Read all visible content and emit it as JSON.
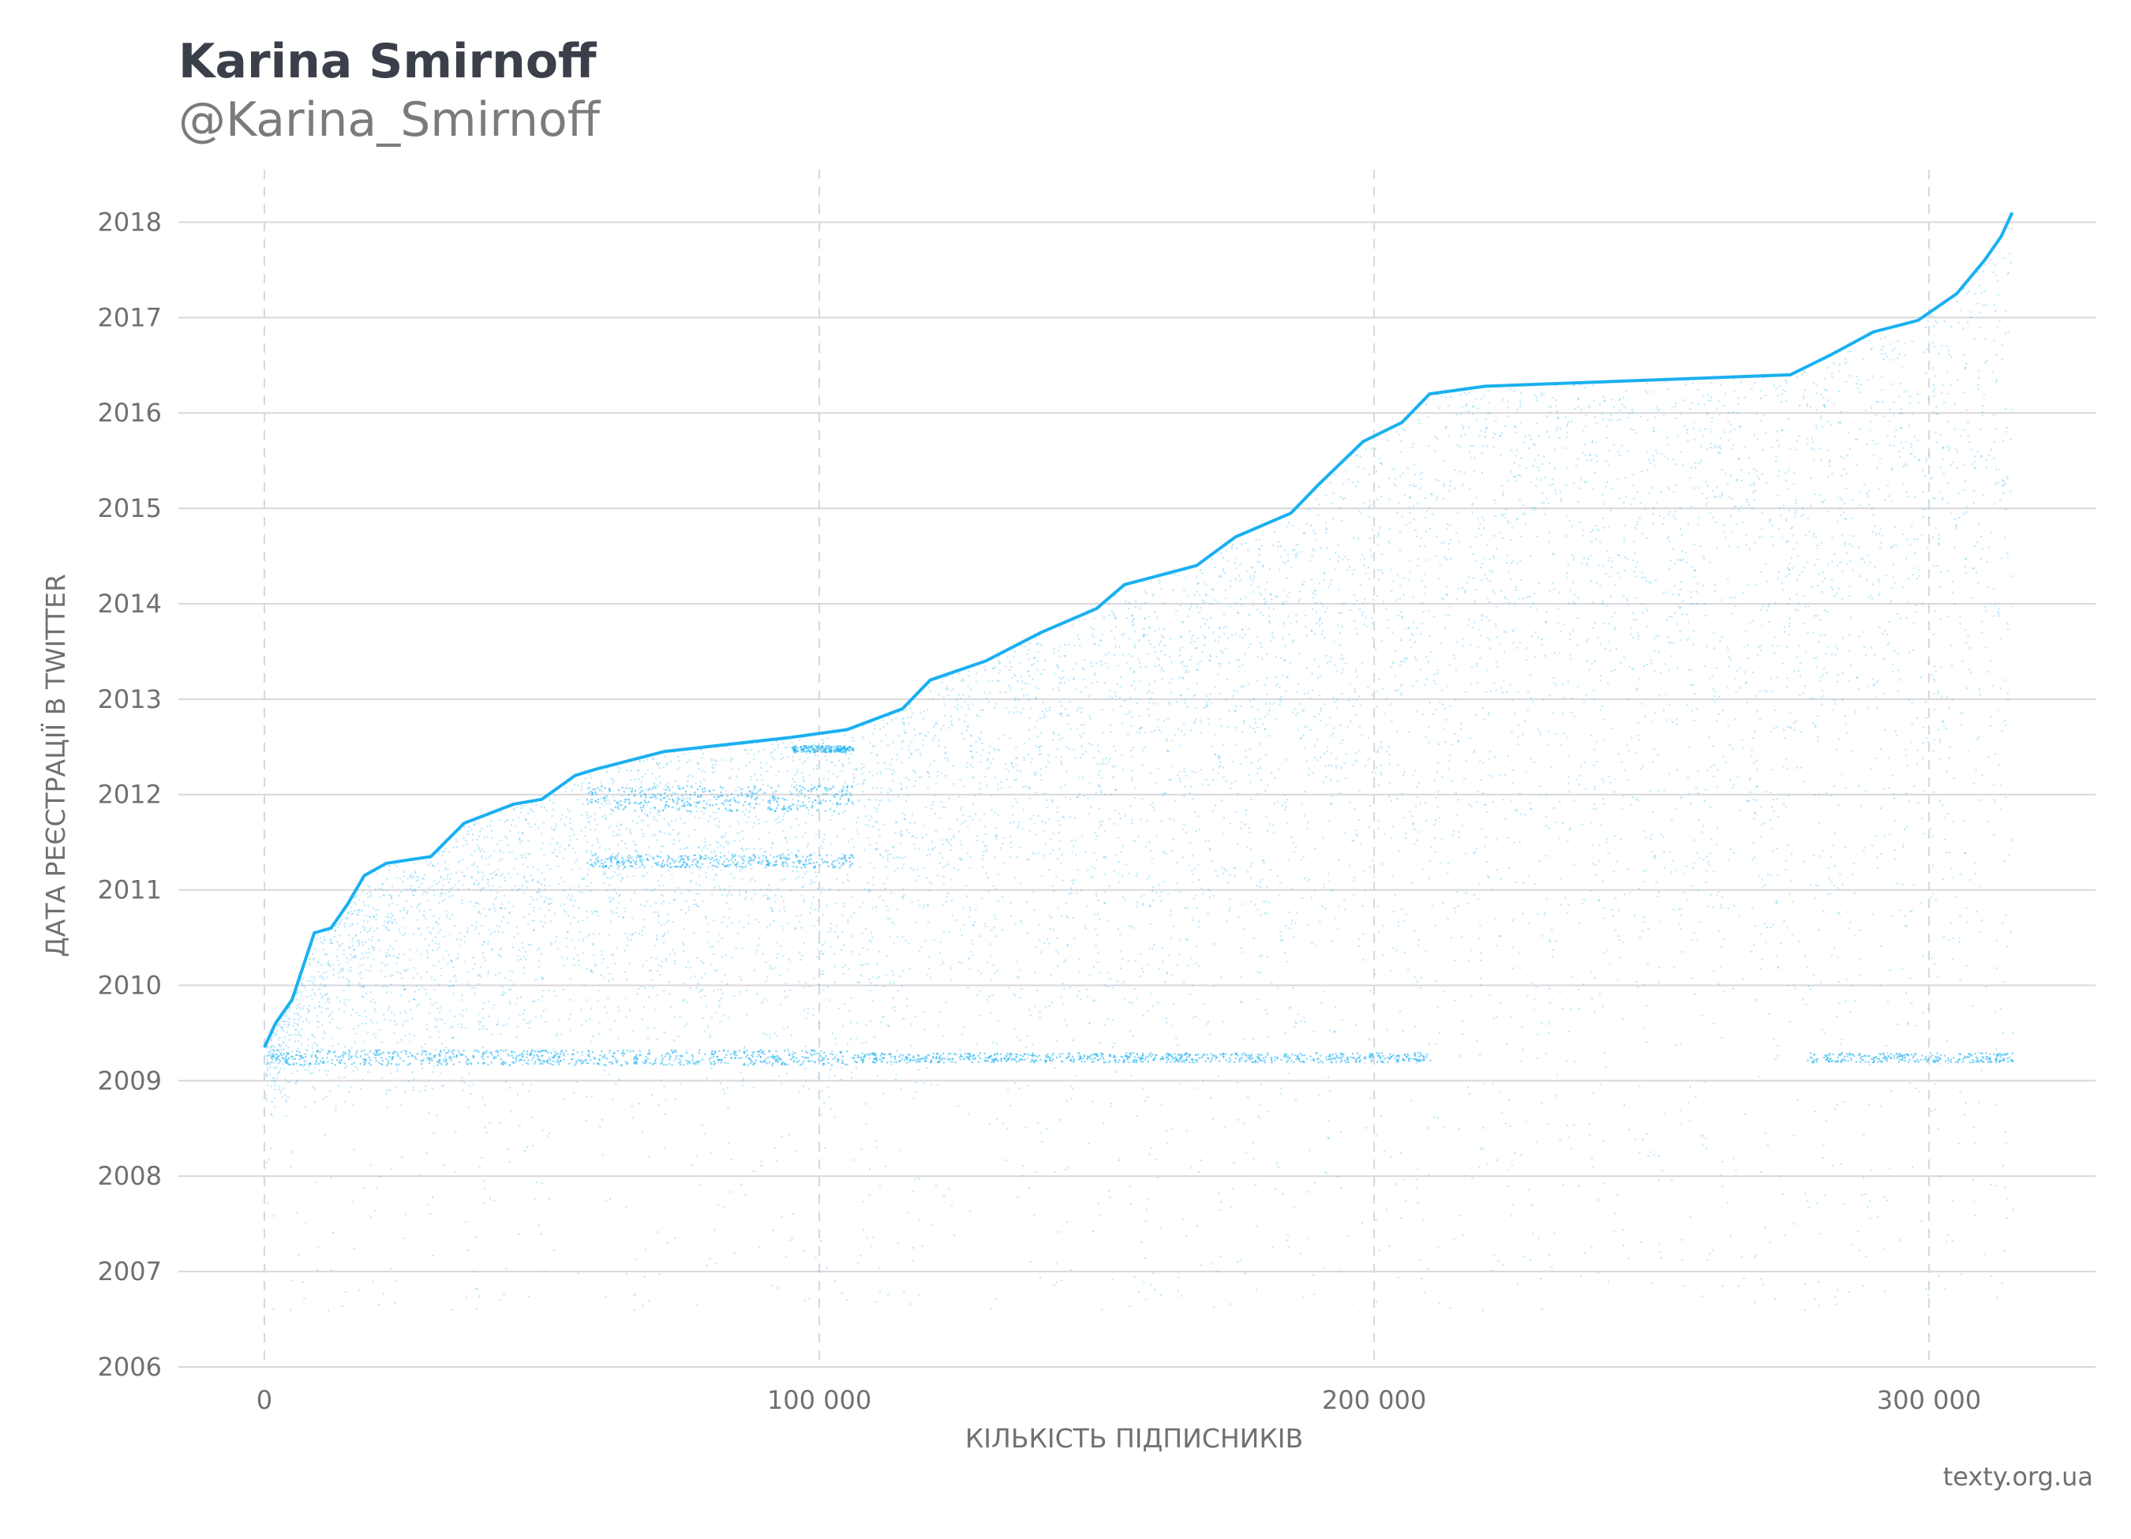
{
  "chart_data": {
    "type": "scatter",
    "title": "Karina Smirnoff",
    "subtitle": "@Karina_Smirnoff",
    "xlabel": "КІЛЬКІСТЬ ПІДПИСНИКІВ",
    "ylabel": "ДАТА РЕЄСТРАЦІЇ В TWITTER",
    "xlim": [
      -15500,
      330000
    ],
    "ylim": [
      2006,
      2018.55
    ],
    "x_ticks": [
      0,
      100000,
      200000,
      300000
    ],
    "x_tick_labels": [
      "0",
      "100 000",
      "200 000",
      "300 000"
    ],
    "y_ticks": [
      2006,
      2007,
      2008,
      2009,
      2010,
      2011,
      2012,
      2013,
      2014,
      2015,
      2016,
      2017,
      2018
    ],
    "y_tick_labels": [
      "2006",
      "2007",
      "2008",
      "2009",
      "2010",
      "2011",
      "2012",
      "2013",
      "2014",
      "2015",
      "2016",
      "2017",
      "2018"
    ],
    "grid": {
      "horizontal": "solid",
      "vertical": "dashed"
    },
    "point_color": "#1ab0f0",
    "total_followers": 315000,
    "frontier": [
      [
        0,
        2009.35
      ],
      [
        2000,
        2009.6
      ],
      [
        5000,
        2009.85
      ],
      [
        9000,
        2010.55
      ],
      [
        12000,
        2010.6
      ],
      [
        15000,
        2010.85
      ],
      [
        18000,
        2011.15
      ],
      [
        22000,
        2011.28
      ],
      [
        30000,
        2011.35
      ],
      [
        36000,
        2011.7
      ],
      [
        45000,
        2011.9
      ],
      [
        50000,
        2011.95
      ],
      [
        56000,
        2012.2
      ],
      [
        60000,
        2012.27
      ],
      [
        72000,
        2012.45
      ],
      [
        95000,
        2012.6
      ],
      [
        105000,
        2012.68
      ],
      [
        115000,
        2012.9
      ],
      [
        120000,
        2013.2
      ],
      [
        130000,
        2013.4
      ],
      [
        140000,
        2013.7
      ],
      [
        150000,
        2013.95
      ],
      [
        155000,
        2014.2
      ],
      [
        168000,
        2014.4
      ],
      [
        175000,
        2014.7
      ],
      [
        185000,
        2014.95
      ],
      [
        190000,
        2015.25
      ],
      [
        198000,
        2015.7
      ],
      [
        205000,
        2015.9
      ],
      [
        210000,
        2016.2
      ],
      [
        220000,
        2016.28
      ],
      [
        275000,
        2016.4
      ],
      [
        282000,
        2016.6
      ],
      [
        290000,
        2016.85
      ],
      [
        298000,
        2016.97
      ],
      [
        305000,
        2017.25
      ],
      [
        310000,
        2017.6
      ],
      [
        313000,
        2017.85
      ],
      [
        315000,
        2018.1
      ]
    ],
    "dense_bands": [
      {
        "x_from": 0,
        "x_to": 105000,
        "y_from": 2009.17,
        "y_to": 2009.33
      },
      {
        "x_from": 106000,
        "x_to": 210000,
        "y_from": 2009.2,
        "y_to": 2009.3
      },
      {
        "x_from": 278000,
        "x_to": 315000,
        "y_from": 2009.2,
        "y_to": 2009.3
      },
      {
        "x_from": 58000,
        "x_to": 106000,
        "y_from": 2011.83,
        "y_to": 2012.1
      },
      {
        "x_from": 58000,
        "x_to": 106000,
        "y_from": 2011.24,
        "y_to": 2011.38
      },
      {
        "x_from": 95000,
        "x_to": 106000,
        "y_from": 2012.45,
        "y_to": 2012.52
      }
    ],
    "source": "texty.org.ua"
  }
}
